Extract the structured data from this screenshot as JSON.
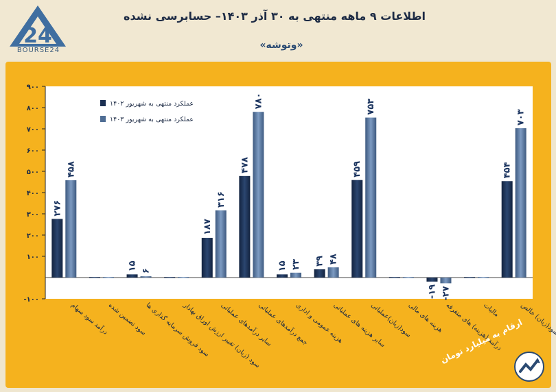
{
  "header": {
    "title": "اطلاعات ۹ ماهه منتهی به ۳۰ آذر ۱۴۰۳– حسابرسی نشده",
    "subtitle": "«وتوشه»",
    "logo_text": "BOURSE24",
    "logo_number": "24"
  },
  "footer": {
    "unit_note": "ارقام به میلیارد تومان"
  },
  "colors": {
    "panel": "#f5b21e",
    "plot_bg": "#ffffff",
    "series_1402": "#1b2f52",
    "series_1403": "#4f6d94"
  },
  "chart_data": {
    "type": "bar",
    "title": "",
    "xlabel": "",
    "ylabel": "",
    "ylim": [
      -100,
      900
    ],
    "yticks": [
      -100,
      100,
      200,
      300,
      400,
      500,
      600,
      700,
      800,
      900
    ],
    "ytick_labels": [
      "-۱۰۰",
      "۱۰۰",
      "۲۰۰",
      "۳۰۰",
      "۴۰۰",
      "۵۰۰",
      "۶۰۰",
      "۷۰۰",
      "۸۰۰",
      "۹۰۰"
    ],
    "grid": false,
    "legend_position": "top-left",
    "categories": [
      "درآمد سود سهام",
      "سود تضمین شده",
      "سود فروش سرمایه گذاری ها",
      "سود (زیان) تغییر ارزش اوراق بهادار",
      "سایر درآمدهای عملیاتی",
      "جمع درآمدهای عملیاتی",
      "هزینه عمومی و اداری",
      "سایر هزینه های عملیاتی",
      "سود(زیان)عملیاتی",
      "هزینه های مالی",
      "درآمد (هزینه) های متفرقه",
      "مالیات",
      "سود(زیان) خالص"
    ],
    "series": [
      {
        "name": "عملکرد منتهی به شهریور ۱۴۰۲",
        "values": [
          276,
          0,
          15,
          0,
          187,
          478,
          15,
          39,
          459,
          0,
          -19,
          0,
          454
        ],
        "labels": [
          "۲۷۶",
          "",
          "۱۵",
          "",
          "۱۸۷",
          "۴۷۸",
          "۱۵",
          "۳۹",
          "۴۵۹",
          "",
          "-۱۹",
          "",
          "۴۵۴"
        ]
      },
      {
        "name": "عملکرد منتهی به شهریور ۱۴۰۳",
        "values": [
          458,
          0,
          6,
          0,
          316,
          780,
          23,
          48,
          753,
          0,
          -27,
          0,
          703
        ],
        "labels": [
          "۴۵۸",
          "",
          "۶",
          "",
          "۳۱۶",
          "۷۸۰",
          "۲۳",
          "۴۸",
          "۷۵۳",
          "",
          "-۲۷",
          "",
          "۷۰۳"
        ]
      }
    ]
  }
}
